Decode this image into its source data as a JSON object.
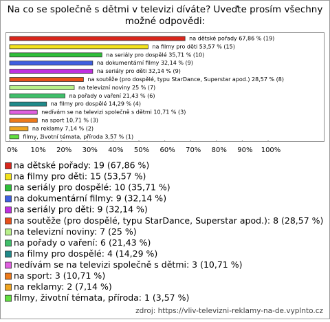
{
  "chart_data": {
    "type": "bar",
    "orientation": "horizontal",
    "title": [
      "Na co se společně s dětmi v televizi díváte? Uveďte prosím všechny",
      "možné odpovědi:"
    ],
    "categories": [
      "na dětské pořady",
      "na filmy pro děti",
      "na seriály pro dospělé",
      "na dokumentární filmy",
      "na seriály pro děti",
      "na soutěže (pro dospělé, typu StarDance, Superstar apod.)",
      "na televizní noviny",
      "na pořady o vaření",
      "na filmy pro dospělé",
      "nedívám se na televizi společně s dětmi",
      "na sport",
      "na reklamy",
      "filmy, životní témata, příroda"
    ],
    "values": [
      67.86,
      53.57,
      35.71,
      32.14,
      32.14,
      28.57,
      25,
      21.43,
      14.29,
      10.71,
      10.71,
      7.14,
      3.57
    ],
    "counts": [
      19,
      15,
      10,
      9,
      9,
      8,
      7,
      6,
      4,
      3,
      3,
      2,
      1
    ],
    "value_labels": [
      "na dětské pořady 67,86 % (19)",
      "na filmy pro děti 53,57 % (15)",
      "na seriály pro dospělé 35,71 % (10)",
      "na dokumentární filmy 32,14 % (9)",
      "na seriály pro děti 32,14 % (9)",
      "na soutěže (pro dospělé, typu StarDance, Superstar apod.) 28,57 % (8)",
      "na televizní noviny 25 % (7)",
      "na pořady o vaření 21,43 % (6)",
      "na filmy pro dospělé 14,29 % (4)",
      "nedívám se na televizi společně s dětmi 10,71 % (3)",
      "na sport 10,71 % (3)",
      "na reklamy 7,14 % (2)",
      "filmy, životní témata, příroda 3,57 % (1)"
    ],
    "legend_labels": [
      "na dětské pořady: 19 (67,86 %)",
      "na filmy pro děti: 15 (53,57 %)",
      "na seriály pro dospělé: 10 (35,71 %)",
      "na dokumentární filmy: 9 (32,14 %)",
      "na seriály pro děti: 9 (32,14 %)",
      "na soutěže (pro dospělé, typu StarDance, Superstar apod.): 8 (28,57 %)",
      "na televizní noviny: 7 (25 %)",
      "na pořady o vaření: 6 (21,43 %)",
      "na filmy pro dospělé: 4 (14,29 %)",
      "nedívám se na televizi společně s dětmi: 3 (10,71 %)",
      "na sport: 3 (10,71 %)",
      "na reklamy: 2 (7,14 %)",
      "filmy, životní témata, příroda: 1 (3,57 %)"
    ],
    "colors": [
      "#d8261c",
      "#f2e21c",
      "#2fbf3a",
      "#3f5fe0",
      "#c02fe0",
      "#e8501a",
      "#b8f08a",
      "#3fbf6a",
      "#1f8a8a",
      "#e060e0",
      "#ee7a1a",
      "#f0a520",
      "#62e040"
    ],
    "xlim": [
      0,
      100
    ],
    "xticks": [
      {
        "value": 0,
        "label": "0%"
      },
      {
        "value": 10,
        "label": "10%"
      },
      {
        "value": 20,
        "label": "20%"
      },
      {
        "value": 30,
        "label": "30%"
      },
      {
        "value": 40,
        "label": "40%"
      },
      {
        "value": 50,
        "label": "50%"
      },
      {
        "value": 60,
        "label": "60%"
      },
      {
        "value": 70,
        "label": "70%"
      },
      {
        "value": 80,
        "label": "80%"
      },
      {
        "value": 90,
        "label": "90%"
      },
      {
        "value": 100,
        "label": "100%"
      }
    ],
    "source": "zdroj: https://vliv-televizni-reklamy-na-de.vyplnto.cz"
  }
}
